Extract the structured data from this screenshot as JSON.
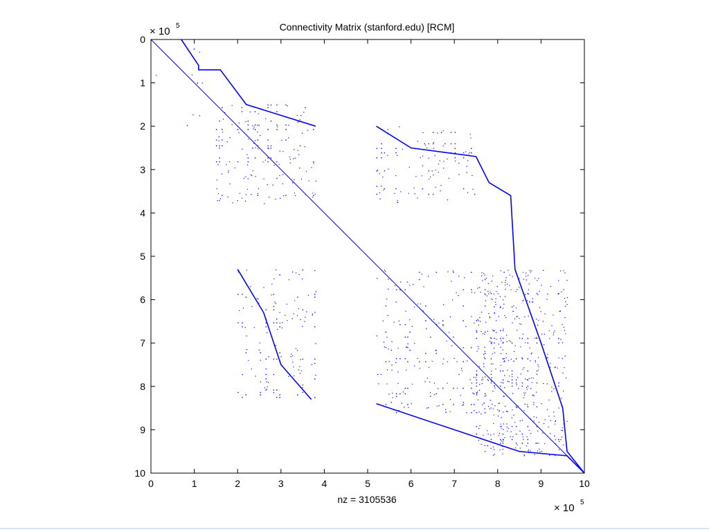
{
  "chart_data": {
    "type": "scatter",
    "title": "Connectivity Matrix (stanford.edu) [RCM]",
    "xlabel": "nz = 3105536",
    "ylabel": "",
    "x_exponent_label": "× 10",
    "x_exponent_power": "5",
    "y_exponent_label": "× 10",
    "y_exponent_power": "5",
    "xlim": [
      0,
      10
    ],
    "ylim": [
      0,
      10
    ],
    "y_reversed": true,
    "xticks": [
      "0",
      "1",
      "2",
      "3",
      "4",
      "5",
      "6",
      "7",
      "8",
      "9",
      "10"
    ],
    "yticks": [
      "0",
      "1",
      "2",
      "3",
      "4",
      "5",
      "6",
      "7",
      "8",
      "9",
      "10"
    ],
    "grid": false,
    "marker_color": "#0000ff",
    "diagonal": {
      "from": [
        0,
        0
      ],
      "to": [
        10,
        10
      ]
    },
    "sparse_blocks": [
      {
        "name": "block-top-left-strip",
        "x": [
          0,
          0.4
        ],
        "y": [
          0.6,
          1.2
        ],
        "density": 0.05
      },
      {
        "name": "block-a-upper",
        "x": [
          0.7,
          1.3
        ],
        "y": [
          0.0,
          1.0
        ],
        "density": 0.08
      },
      {
        "name": "block-a",
        "x": [
          0.7,
          1.3
        ],
        "y": [
          1.5,
          2.2
        ],
        "density": 0.1
      },
      {
        "name": "block-b",
        "x": [
          1.5,
          3.8
        ],
        "y": [
          1.5,
          3.8
        ],
        "density": 0.28
      },
      {
        "name": "block-c",
        "x": [
          5.2,
          7.5
        ],
        "y": [
          2.0,
          3.8
        ],
        "density": 0.22
      },
      {
        "name": "block-d",
        "x": [
          2.0,
          3.8
        ],
        "y": [
          5.3,
          8.3
        ],
        "density": 0.2
      },
      {
        "name": "block-e",
        "x": [
          5.2,
          8.3
        ],
        "y": [
          5.3,
          8.6
        ],
        "density": 0.22
      },
      {
        "name": "block-f-dense",
        "x": [
          7.5,
          9.6
        ],
        "y": [
          5.3,
          9.6
        ],
        "density": 0.55
      }
    ],
    "staircase_edges": [
      {
        "name": "edge-top-left",
        "points": [
          [
            0.7,
            0.0
          ],
          [
            1.1,
            0.6
          ],
          [
            1.1,
            0.7
          ],
          [
            1.6,
            0.7
          ],
          [
            2.2,
            1.5
          ],
          [
            3.8,
            2.0
          ]
        ]
      },
      {
        "name": "edge-top-right",
        "points": [
          [
            5.2,
            2.0
          ],
          [
            6.0,
            2.5
          ],
          [
            7.5,
            2.7
          ],
          [
            7.8,
            3.3
          ],
          [
            8.3,
            3.6
          ],
          [
            8.4,
            5.3
          ]
        ]
      },
      {
        "name": "edge-lower-left",
        "points": [
          [
            2.0,
            5.3
          ],
          [
            2.6,
            6.3
          ],
          [
            3.0,
            7.5
          ],
          [
            3.7,
            8.3
          ]
        ]
      },
      {
        "name": "edge-lower-right",
        "points": [
          [
            8.4,
            5.3
          ],
          [
            9.0,
            7.0
          ],
          [
            9.5,
            8.5
          ],
          [
            9.6,
            9.5
          ],
          [
            10.0,
            10.0
          ]
        ]
      },
      {
        "name": "edge-bottom",
        "points": [
          [
            5.2,
            8.4
          ],
          [
            7.0,
            9.0
          ],
          [
            8.5,
            9.5
          ],
          [
            9.6,
            9.6
          ],
          [
            10.0,
            10.0
          ]
        ]
      }
    ]
  }
}
